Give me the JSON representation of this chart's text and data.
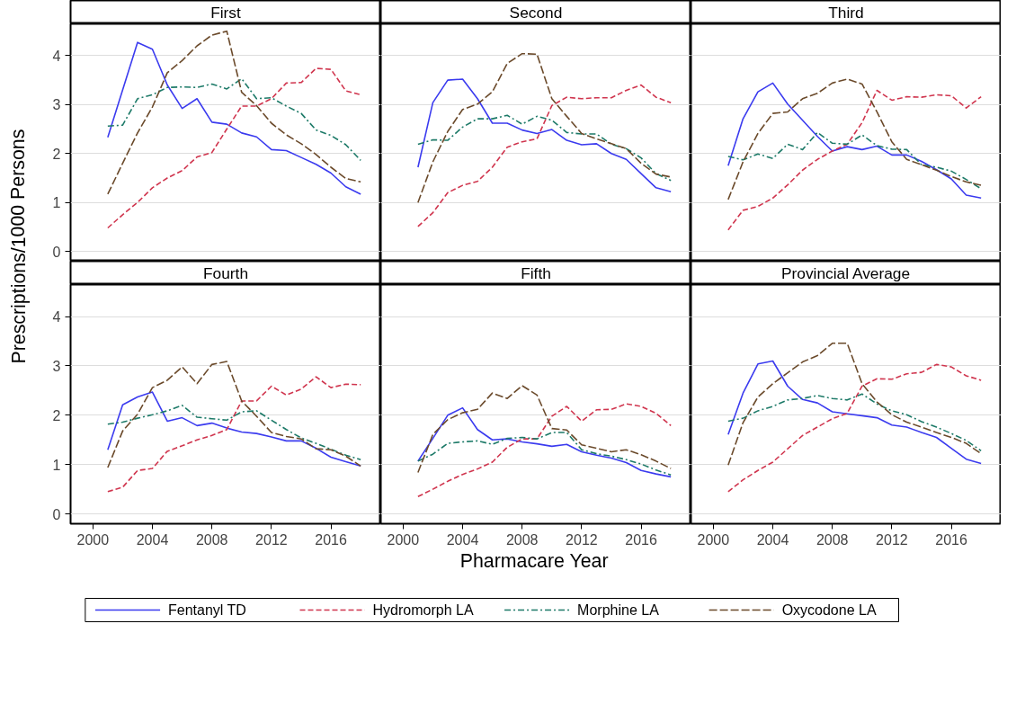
{
  "chart_data": [
    {
      "type": "line",
      "title": "First",
      "xlabel": "Pharmacare Year",
      "ylabel": "Prescriptions/1000 Persons",
      "x": [
        2001,
        2002,
        2003,
        2004,
        2005,
        2006,
        2007,
        2008,
        2009,
        2010,
        2011,
        2012,
        2013,
        2014,
        2015,
        2016,
        2017,
        2018
      ],
      "xlim": [
        1998.5,
        2019.35
      ],
      "xticks": [
        2000,
        2004,
        2008,
        2012,
        2016
      ],
      "ylim": [
        -0.2,
        4.65
      ],
      "yticks": [
        0,
        1,
        2,
        3,
        4
      ],
      "grid": "y",
      "legend": "bottom",
      "tick_labels": "y",
      "series": [
        {
          "name": "Fentanyl TD",
          "color": "#3b3bef",
          "line_style": "solid",
          "values": [
            2.33,
            3.3,
            4.27,
            4.13,
            3.4,
            2.92,
            3.12,
            2.64,
            2.6,
            2.42,
            2.34,
            2.08,
            2.06,
            1.92,
            1.78,
            1.6,
            1.32,
            1.17
          ]
        },
        {
          "name": "Hydromorph LA",
          "color": "#d0354e",
          "line_style": "dashed",
          "values": [
            0.48,
            0.75,
            1.0,
            1.3,
            1.5,
            1.65,
            1.93,
            2.02,
            2.5,
            2.97,
            2.97,
            3.12,
            3.44,
            3.45,
            3.74,
            3.72,
            3.28,
            3.2
          ]
        },
        {
          "name": "Morphine LA",
          "color": "#1d7a68",
          "line_style": "dashdot",
          "values": [
            2.56,
            2.58,
            3.12,
            3.2,
            3.35,
            3.36,
            3.35,
            3.42,
            3.32,
            3.53,
            3.12,
            3.14,
            2.97,
            2.82,
            2.48,
            2.37,
            2.18,
            1.86
          ]
        },
        {
          "name": "Oxycodone LA",
          "color": "#6b4a2b",
          "line_style": "longdash",
          "values": [
            1.17,
            1.8,
            2.42,
            2.95,
            3.65,
            3.9,
            4.2,
            4.42,
            4.5,
            3.25,
            2.98,
            2.62,
            2.38,
            2.2,
            1.98,
            1.72,
            1.49,
            1.42
          ]
        }
      ]
    },
    {
      "type": "line",
      "title": "Second",
      "x": [
        2001,
        2002,
        2003,
        2004,
        2005,
        2006,
        2007,
        2008,
        2009,
        2010,
        2011,
        2012,
        2013,
        2014,
        2015,
        2016,
        2017,
        2018
      ],
      "xlim": [
        1998.5,
        2019.35
      ],
      "xticks": [
        2000,
        2004,
        2008,
        2012,
        2016
      ],
      "ylim": [
        -0.2,
        4.65
      ],
      "yticks": [
        0,
        1,
        2,
        3,
        4
      ],
      "grid": "y",
      "tick_labels": false,
      "series": [
        {
          "color": "#3b3bef",
          "line_style": "solid",
          "values": [
            1.72,
            3.04,
            3.5,
            3.52,
            3.12,
            2.62,
            2.62,
            2.48,
            2.41,
            2.49,
            2.27,
            2.18,
            2.2,
            2.0,
            1.88,
            1.59,
            1.3,
            1.22
          ]
        },
        {
          "color": "#d0354e",
          "line_style": "dashed",
          "values": [
            0.51,
            0.79,
            1.2,
            1.35,
            1.43,
            1.72,
            2.13,
            2.24,
            2.3,
            2.98,
            3.15,
            3.12,
            3.14,
            3.14,
            3.29,
            3.4,
            3.15,
            3.04
          ]
        },
        {
          "color": "#1d7a68",
          "line_style": "dashdot",
          "values": [
            2.19,
            2.28,
            2.27,
            2.54,
            2.71,
            2.71,
            2.78,
            2.6,
            2.76,
            2.68,
            2.43,
            2.4,
            2.4,
            2.19,
            2.1,
            1.91,
            1.59,
            1.45
          ]
        },
        {
          "color": "#6b4a2b",
          "line_style": "longdash",
          "values": [
            1.0,
            1.83,
            2.45,
            2.9,
            3.01,
            3.26,
            3.84,
            4.04,
            4.03,
            3.12,
            2.76,
            2.41,
            2.3,
            2.2,
            2.1,
            1.8,
            1.58,
            1.52
          ]
        }
      ]
    },
    {
      "type": "line",
      "title": "Third",
      "x": [
        2001,
        2002,
        2003,
        2004,
        2005,
        2006,
        2007,
        2008,
        2009,
        2010,
        2011,
        2012,
        2013,
        2014,
        2015,
        2016,
        2017,
        2018
      ],
      "xlim": [
        1998.5,
        2019.35
      ],
      "xticks": [
        2000,
        2004,
        2008,
        2012,
        2016
      ],
      "ylim": [
        -0.2,
        4.65
      ],
      "yticks": [
        0,
        1,
        2,
        3,
        4
      ],
      "grid": "y",
      "tick_labels": false,
      "series": [
        {
          "color": "#3b3bef",
          "line_style": "solid",
          "values": [
            1.75,
            2.71,
            3.26,
            3.44,
            3.01,
            2.68,
            2.35,
            2.05,
            2.14,
            2.08,
            2.15,
            1.97,
            1.97,
            1.84,
            1.67,
            1.48,
            1.15,
            1.09
          ]
        },
        {
          "color": "#d0354e",
          "line_style": "dashed",
          "values": [
            0.44,
            0.84,
            0.92,
            1.09,
            1.36,
            1.66,
            1.88,
            2.05,
            2.19,
            2.63,
            3.29,
            3.09,
            3.16,
            3.15,
            3.2,
            3.18,
            2.93,
            3.16
          ]
        },
        {
          "color": "#1d7a68",
          "line_style": "dashdot",
          "values": [
            1.94,
            1.87,
            1.99,
            1.9,
            2.19,
            2.08,
            2.43,
            2.21,
            2.19,
            2.38,
            2.16,
            2.09,
            2.08,
            1.77,
            1.72,
            1.64,
            1.47,
            1.28
          ]
        },
        {
          "color": "#6b4a2b",
          "line_style": "longdash",
          "values": [
            1.06,
            1.83,
            2.41,
            2.82,
            2.85,
            3.12,
            3.23,
            3.44,
            3.52,
            3.42,
            2.85,
            2.24,
            1.88,
            1.77,
            1.66,
            1.53,
            1.42,
            1.35
          ]
        }
      ]
    },
    {
      "type": "line",
      "title": "Fourth",
      "x": [
        2001,
        2002,
        2003,
        2004,
        2005,
        2006,
        2007,
        2008,
        2009,
        2010,
        2011,
        2012,
        2013,
        2014,
        2015,
        2016,
        2017,
        2018
      ],
      "xlim": [
        1998.5,
        2019.35
      ],
      "xticks": [
        2000,
        2004,
        2008,
        2012,
        2016
      ],
      "ylim": [
        -0.2,
        4.65
      ],
      "yticks": [
        0,
        1,
        2,
        3,
        4
      ],
      "grid": "y",
      "series": [
        {
          "color": "#3b3bef",
          "line_style": "solid",
          "values": [
            1.3,
            2.21,
            2.37,
            2.47,
            1.88,
            1.95,
            1.79,
            1.84,
            1.74,
            1.66,
            1.63,
            1.56,
            1.48,
            1.48,
            1.33,
            1.15,
            1.06,
            0.97
          ]
        },
        {
          "color": "#d0354e",
          "line_style": "dashed",
          "values": [
            0.45,
            0.54,
            0.88,
            0.92,
            1.27,
            1.38,
            1.5,
            1.59,
            1.71,
            2.29,
            2.29,
            2.59,
            2.41,
            2.53,
            2.78,
            2.56,
            2.63,
            2.62
          ]
        },
        {
          "color": "#1d7a68",
          "line_style": "dashdot",
          "values": [
            1.82,
            1.86,
            1.94,
            2.01,
            2.09,
            2.2,
            1.96,
            1.93,
            1.9,
            2.07,
            2.09,
            1.9,
            1.71,
            1.54,
            1.43,
            1.31,
            1.19,
            1.1
          ]
        },
        {
          "color": "#6b4a2b",
          "line_style": "longdash",
          "values": [
            0.94,
            1.68,
            2.02,
            2.56,
            2.71,
            2.98,
            2.64,
            3.03,
            3.09,
            2.29,
            1.98,
            1.65,
            1.57,
            1.52,
            1.32,
            1.3,
            1.17,
            0.97
          ]
        }
      ]
    },
    {
      "type": "line",
      "title": "Fifth",
      "x": [
        2001,
        2002,
        2003,
        2004,
        2005,
        2006,
        2007,
        2008,
        2009,
        2010,
        2011,
        2012,
        2013,
        2014,
        2015,
        2016,
        2017,
        2018
      ],
      "xlim": [
        1998.5,
        2019.35
      ],
      "xticks": [
        2000,
        2004,
        2008,
        2012,
        2016
      ],
      "ylim": [
        -0.2,
        4.65
      ],
      "yticks": [
        0,
        1,
        2,
        3,
        4
      ],
      "grid": "y",
      "tick_labels": "x",
      "series": [
        {
          "color": "#3b3bef",
          "line_style": "solid",
          "values": [
            1.07,
            1.53,
            2.0,
            2.15,
            1.71,
            1.5,
            1.52,
            1.46,
            1.42,
            1.37,
            1.41,
            1.26,
            1.19,
            1.13,
            1.04,
            0.88,
            0.81,
            0.75
          ]
        },
        {
          "color": "#d0354e",
          "line_style": "dashed",
          "values": [
            0.35,
            0.5,
            0.66,
            0.8,
            0.91,
            1.05,
            1.35,
            1.52,
            1.52,
            1.98,
            2.18,
            1.88,
            2.11,
            2.12,
            2.23,
            2.18,
            2.04,
            1.79
          ]
        },
        {
          "color": "#1d7a68",
          "line_style": "dashdot",
          "values": [
            1.07,
            1.21,
            1.43,
            1.46,
            1.48,
            1.41,
            1.53,
            1.55,
            1.52,
            1.65,
            1.65,
            1.3,
            1.22,
            1.17,
            1.1,
            1.01,
            0.89,
            0.79
          ]
        },
        {
          "color": "#6b4a2b",
          "line_style": "longdash",
          "values": [
            0.84,
            1.61,
            1.91,
            2.05,
            2.12,
            2.45,
            2.34,
            2.6,
            2.41,
            1.73,
            1.7,
            1.4,
            1.33,
            1.26,
            1.3,
            1.2,
            1.07,
            0.92
          ]
        }
      ]
    },
    {
      "type": "line",
      "title": "Provincial Average",
      "x": [
        2001,
        2002,
        2003,
        2004,
        2005,
        2006,
        2007,
        2008,
        2009,
        2010,
        2011,
        2012,
        2013,
        2014,
        2015,
        2016,
        2017,
        2018
      ],
      "xlim": [
        1998.5,
        2019.35
      ],
      "xticks": [
        2000,
        2004,
        2008,
        2012,
        2016
      ],
      "ylim": [
        -0.2,
        4.65
      ],
      "yticks": [
        0,
        1,
        2,
        3,
        4
      ],
      "grid": "y",
      "tick_labels": "x",
      "series": [
        {
          "color": "#3b3bef",
          "line_style": "solid",
          "values": [
            1.61,
            2.45,
            3.04,
            3.1,
            2.59,
            2.32,
            2.25,
            2.07,
            2.03,
            1.99,
            1.95,
            1.8,
            1.76,
            1.65,
            1.55,
            1.33,
            1.11,
            1.02
          ]
        },
        {
          "color": "#d0354e",
          "line_style": "dashed",
          "values": [
            0.45,
            0.69,
            0.88,
            1.05,
            1.32,
            1.59,
            1.76,
            1.93,
            2.04,
            2.59,
            2.74,
            2.73,
            2.84,
            2.87,
            3.03,
            2.98,
            2.8,
            2.71
          ]
        },
        {
          "color": "#1d7a68",
          "line_style": "dashdot",
          "values": [
            1.88,
            1.94,
            2.09,
            2.18,
            2.31,
            2.34,
            2.4,
            2.34,
            2.31,
            2.43,
            2.23,
            2.09,
            2.01,
            1.87,
            1.76,
            1.63,
            1.49,
            1.28
          ]
        },
        {
          "color": "#6b4a2b",
          "line_style": "longdash",
          "values": [
            0.99,
            1.85,
            2.37,
            2.64,
            2.86,
            3.08,
            3.21,
            3.46,
            3.46,
            2.64,
            2.27,
            2.01,
            1.86,
            1.76,
            1.65,
            1.55,
            1.43,
            1.22
          ]
        }
      ]
    }
  ]
}
